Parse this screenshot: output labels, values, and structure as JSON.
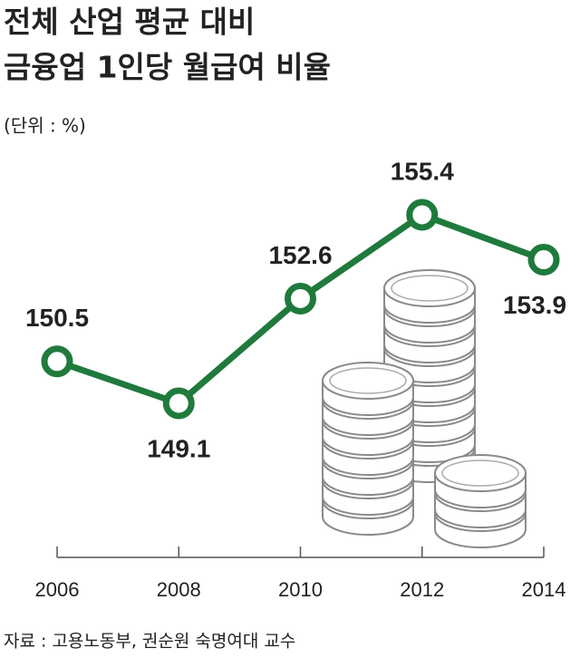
{
  "chart_data": {
    "type": "line",
    "title": [
      "전체 산업 평균 대비",
      "금융업 1인당 월급여 비율"
    ],
    "subtitle": "(단위 : %)",
    "source": "자료 : 고용노동부, 권순원 숙명여대 교수",
    "categories": [
      "2006",
      "2008",
      "2010",
      "2012",
      "2014"
    ],
    "values": [
      150.5,
      149.1,
      152.6,
      155.4,
      153.9
    ],
    "color": "#1f7a3c"
  }
}
